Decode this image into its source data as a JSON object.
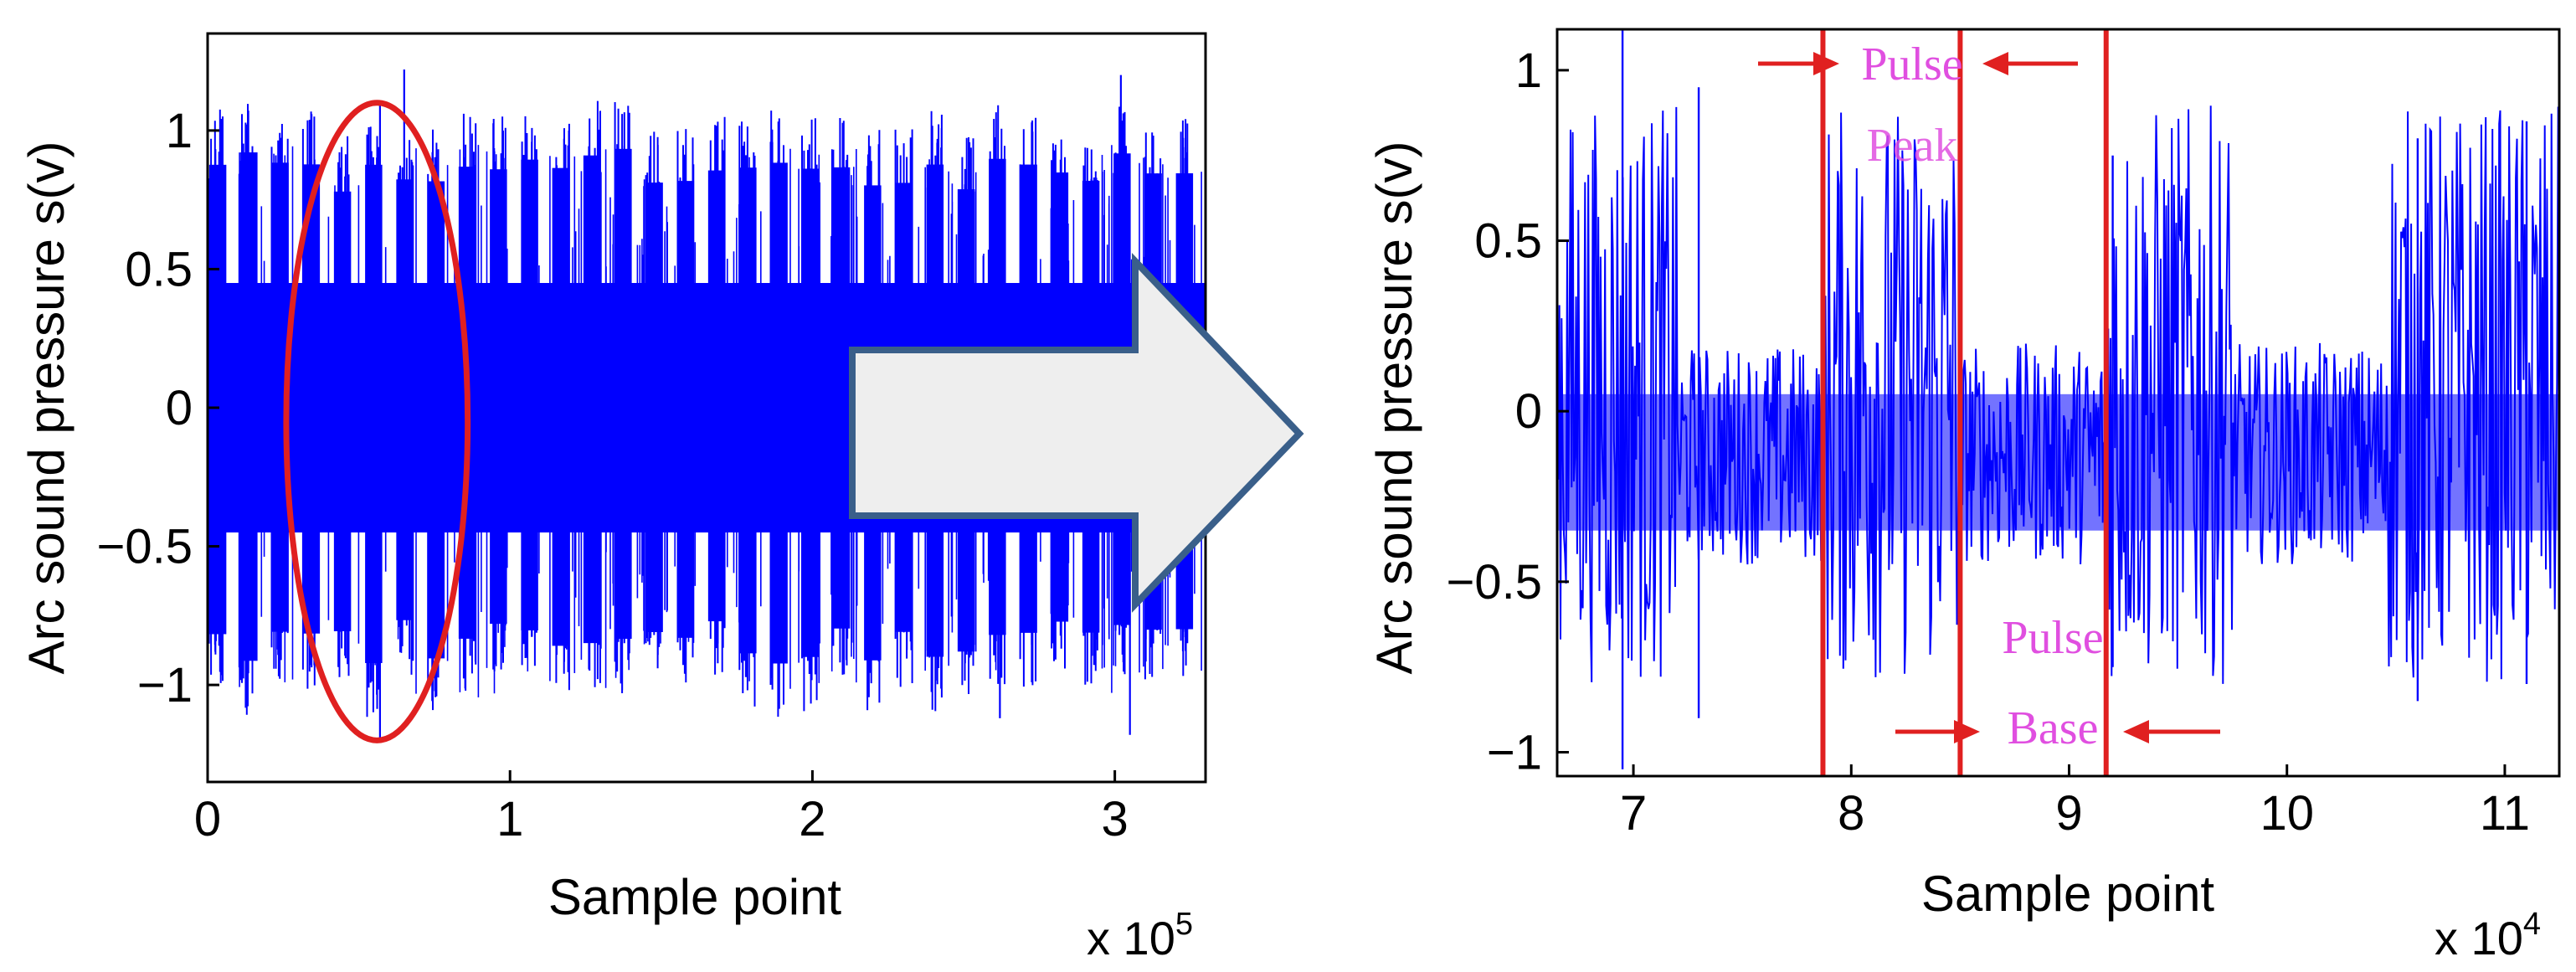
{
  "chart_data": [
    {
      "type": "line",
      "xlabel": "Sample point",
      "ylabel": "Arc sound pressure s(v)",
      "x_multiplier": "x 10",
      "x_multiplier_exp": "5",
      "xlim": [
        0,
        3.3
      ],
      "ylim": [
        -1.35,
        1.35
      ],
      "xticks": [
        0,
        1,
        2,
        3
      ],
      "xtick_labels": [
        "0",
        "1",
        "2",
        "3"
      ],
      "yticks": [
        1,
        0.5,
        0,
        -0.5,
        -1
      ],
      "ytick_labels": [
        "1",
        "0.5",
        "0",
        "−0.5",
        "−1"
      ],
      "grid": false,
      "series": [
        {
          "color": "#0000ff",
          "pulse_count": 32,
          "pulse_peak_range": [
            -0.85,
            0.85
          ],
          "pulse_base_range": [
            -0.45,
            0.45
          ],
          "spikes": [
            {
              "x": 0.57,
              "y": -1.2
            },
            {
              "x": 0.57,
              "y": 1.1
            },
            {
              "x": 0.65,
              "y": 1.22
            },
            {
              "x": 2.62,
              "y": -1.12
            },
            {
              "x": 3.02,
              "y": 1.2
            },
            {
              "x": 3.05,
              "y": -1.18
            }
          ]
        }
      ],
      "annotations": [
        {
          "type": "ellipse",
          "color": "#e02020",
          "center": [
            0.56,
            -0.05
          ],
          "x_half_width": 0.3,
          "y_half_height": 1.15
        }
      ]
    },
    {
      "type": "line",
      "xlabel": "Sample point",
      "ylabel": "Arc sound pressure s(v)",
      "x_multiplier": "x 10",
      "x_multiplier_exp": "4",
      "xlim": [
        6.65,
        11.25
      ],
      "ylim": [
        -1.07,
        1.12
      ],
      "xticks": [
        7,
        8,
        9,
        10,
        11
      ],
      "xtick_labels": [
        "7",
        "8",
        "9",
        "10",
        "11"
      ],
      "yticks": [
        1,
        0.5,
        0,
        -0.5,
        -1
      ],
      "ytick_labels": [
        "1",
        "0.5",
        "0",
        "−0.5",
        "−1"
      ],
      "grid": false,
      "series": [
        {
          "color": "#0000ff",
          "pulse_peak_intervals": [
            [
              6.65,
              7.2
            ],
            [
              7.87,
              8.5
            ],
            [
              9.17,
              9.75
            ],
            [
              10.45,
              11.25
            ]
          ],
          "pulse_peak_range": [
            -0.8,
            0.9
          ],
          "pulse_base_range": [
            -0.45,
            0.2
          ]
        }
      ],
      "vlines": [
        7.87,
        8.5,
        9.17
      ],
      "vline_color": "#e02020",
      "annotations": [
        {
          "text_line1": "Pulse",
          "text_line2": "Peak",
          "between": [
            7.87,
            8.5
          ],
          "position": "top"
        },
        {
          "text_line1": "Pulse",
          "text_line2": "Base",
          "between": [
            8.5,
            9.17
          ],
          "position": "bottom"
        }
      ]
    }
  ],
  "arrow": {
    "fill": "#eeeeee",
    "stroke": "#3a5f8a"
  }
}
